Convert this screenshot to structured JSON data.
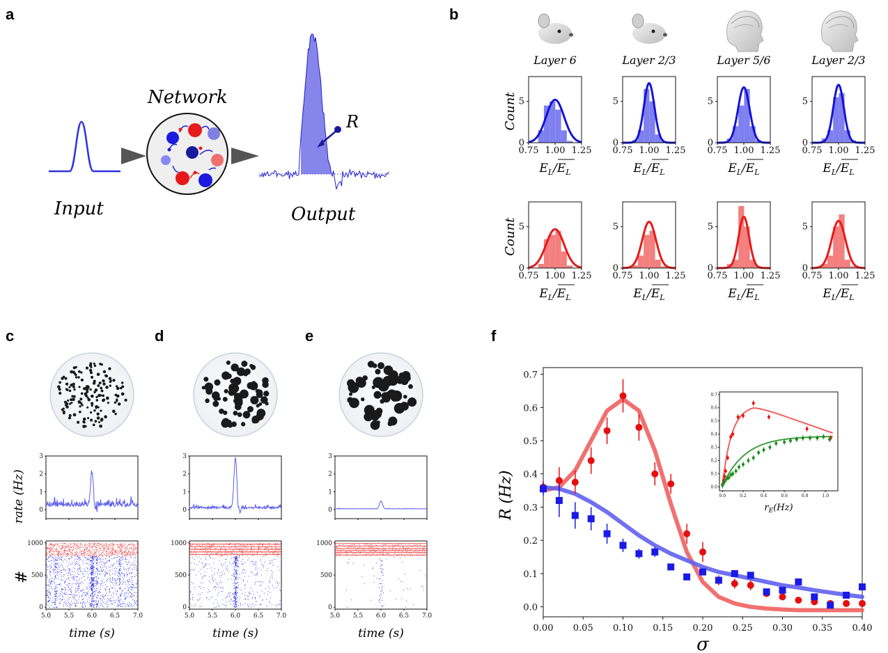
{
  "panel_labels": {
    "a": "a",
    "b": "b",
    "c": "c",
    "d": "d",
    "e": "e",
    "f": "f"
  },
  "panel_a": {
    "network_label": "Network",
    "input_label": "Input",
    "output_label": "Output",
    "r_label": "R",
    "colors": {
      "excitatory": "#2323e6",
      "inhibitory": "#e62020",
      "light_blue": "#8888ee",
      "light_red": "#f07878"
    }
  },
  "panel_b": {
    "subtitles": [
      "Layer 6",
      "Layer 2/3",
      "Layer 5/6",
      "Layer 2/3"
    ],
    "species_icons": [
      "mouse-icon",
      "mouse-icon",
      "human-head-icon",
      "human-head-icon"
    ],
    "ylabel": "Count",
    "xlabel": "E_L / mean(E_L)",
    "xticks": [
      "0.75",
      "1.00",
      "1.25"
    ],
    "yticks": [
      "0",
      "5"
    ],
    "row_colors": [
      "#1414d2",
      "#e61a1a"
    ],
    "hist_colors": [
      "#7f7ff0",
      "#f47f7f"
    ]
  },
  "panels_cde": {
    "rate_ylabel": "rate (Hz)",
    "raster_ylabel": "#",
    "time_xlabel": "time (s)",
    "time_ticks": [
      "5.0",
      "5.5",
      "6.0",
      "6.5",
      "7.0"
    ],
    "rate_yticks": [
      "0",
      "1",
      "2",
      "3"
    ],
    "raster_yticks": [
      "0",
      "500",
      "1000"
    ],
    "columns": [
      {
        "id": "c",
        "dot_style": "small uniform dots",
        "peak_rate": 2.1,
        "baseline_noise": "high"
      },
      {
        "id": "d",
        "dot_style": "medium varied dots",
        "peak_rate": 2.9,
        "baseline_noise": "medium"
      },
      {
        "id": "e",
        "dot_style": "large varied dots",
        "peak_rate": 0.5,
        "baseline_noise": "low"
      }
    ]
  },
  "chart_data": {
    "type": "scatter",
    "xlabel": "σ",
    "ylabel": "R (Hz)",
    "xlim": [
      0,
      0.4
    ],
    "ylim": [
      -0.03,
      0.72
    ],
    "xticks": [
      "0.00",
      "0.05",
      "0.10",
      "0.15",
      "0.20",
      "0.25",
      "0.30",
      "0.35",
      "0.40"
    ],
    "yticks": [
      "0.0",
      "0.1",
      "0.2",
      "0.3",
      "0.4",
      "0.5",
      "0.6",
      "0.7"
    ],
    "series": [
      {
        "color": "#e60f0f",
        "marker": "circle",
        "x": [
          0.0,
          0.02,
          0.04,
          0.06,
          0.08,
          0.1,
          0.12,
          0.14,
          0.16,
          0.18,
          0.2,
          0.22,
          0.24,
          0.26,
          0.28,
          0.3,
          0.32,
          0.34,
          0.36,
          0.38,
          0.4
        ],
        "y": [
          0.36,
          0.38,
          0.375,
          0.44,
          0.53,
          0.635,
          0.54,
          0.4,
          0.37,
          0.22,
          0.165,
          0.08,
          0.07,
          0.065,
          0.04,
          0.03,
          0.02,
          0.015,
          0.01,
          0.01,
          0.01
        ],
        "err": [
          0.02,
          0.04,
          0.035,
          0.04,
          0.04,
          0.05,
          0.04,
          0.035,
          0.03,
          0.03,
          0.03,
          0.015,
          0.015,
          0.015,
          0.01,
          0.01,
          0.01,
          0.01,
          0.01,
          0.01,
          0.01
        ]
      },
      {
        "color": "#1a1ae6",
        "marker": "square",
        "x": [
          0.0,
          0.02,
          0.04,
          0.06,
          0.08,
          0.1,
          0.12,
          0.14,
          0.16,
          0.18,
          0.2,
          0.22,
          0.24,
          0.26,
          0.28,
          0.3,
          0.32,
          0.34,
          0.36,
          0.38,
          0.4
        ],
        "y": [
          0.355,
          0.32,
          0.275,
          0.265,
          0.22,
          0.185,
          0.16,
          0.165,
          0.12,
          0.09,
          0.105,
          0.08,
          0.1,
          0.095,
          0.045,
          0.05,
          0.075,
          0.03,
          0.005,
          0.035,
          0.06
        ],
        "err": [
          0.02,
          0.05,
          0.04,
          0.035,
          0.03,
          0.02,
          0.015,
          0.015,
          0.01,
          0.01,
          0.01,
          0.01,
          0.01,
          0.01,
          0.01,
          0.01,
          0.01,
          0.01,
          0.01,
          0.01,
          0.01
        ]
      }
    ],
    "fits": [
      {
        "color": "#f06060",
        "x": [
          0,
          0.02,
          0.04,
          0.06,
          0.08,
          0.1,
          0.12,
          0.14,
          0.16,
          0.18,
          0.2,
          0.22,
          0.24,
          0.26,
          0.28,
          0.3,
          0.32,
          0.34,
          0.36,
          0.38,
          0.4
        ],
        "y": [
          0.35,
          0.36,
          0.41,
          0.5,
          0.59,
          0.625,
          0.59,
          0.47,
          0.31,
          0.165,
          0.075,
          0.03,
          0.01,
          0.0,
          -0.005,
          -0.008,
          -0.01,
          -0.01,
          -0.01,
          -0.01,
          -0.01
        ]
      },
      {
        "color": "#6060f0",
        "x": [
          0,
          0.02,
          0.04,
          0.06,
          0.08,
          0.1,
          0.12,
          0.14,
          0.16,
          0.18,
          0.2,
          0.22,
          0.24,
          0.26,
          0.28,
          0.3,
          0.32,
          0.34,
          0.36,
          0.38,
          0.4
        ],
        "y": [
          0.36,
          0.355,
          0.34,
          0.315,
          0.285,
          0.25,
          0.215,
          0.185,
          0.16,
          0.14,
          0.12,
          0.105,
          0.095,
          0.085,
          0.075,
          0.065,
          0.058,
          0.05,
          0.043,
          0.036,
          0.03
        ]
      }
    ],
    "inset": {
      "xlabel": "r_E (Hz)",
      "xticks": [
        "0.0",
        "0.2",
        "0.4",
        "0.6",
        "0.8",
        "1.0"
      ],
      "yticks": [
        "0.0",
        "0.1",
        "0.2",
        "0.3",
        "0.4",
        "0.5",
        "0.6",
        "0.7"
      ],
      "xlim": [
        -0.03,
        1.12
      ],
      "ylim": [
        -0.03,
        0.72
      ],
      "series": [
        {
          "color": "#e60f0f",
          "x": [
            0.0,
            0.01,
            0.02,
            0.03,
            0.05,
            0.08,
            0.1,
            0.15,
            0.2,
            0.3,
            0.45,
            0.82,
            1.05
          ],
          "y": [
            0.02,
            0.05,
            0.08,
            0.12,
            0.22,
            0.38,
            0.4,
            0.53,
            0.54,
            0.635,
            0.53,
            0.44,
            0.37
          ]
        },
        {
          "color": "#1a8a1a",
          "x": [
            0.0,
            0.01,
            0.02,
            0.04,
            0.06,
            0.08,
            0.1,
            0.13,
            0.16,
            0.2,
            0.25,
            0.3,
            0.35,
            0.4,
            0.46,
            0.52,
            0.6,
            0.66,
            0.72,
            0.78,
            0.85,
            0.92,
            0.98,
            1.04
          ],
          "y": [
            0.01,
            0.03,
            0.04,
            0.06,
            0.07,
            0.09,
            0.1,
            0.12,
            0.15,
            0.17,
            0.2,
            0.22,
            0.26,
            0.28,
            0.3,
            0.33,
            0.34,
            0.35,
            0.36,
            0.37,
            0.37,
            0.37,
            0.38,
            0.36
          ]
        }
      ],
      "fits": [
        {
          "color": "#f06060"
        },
        {
          "color": "#40a040"
        }
      ]
    }
  }
}
